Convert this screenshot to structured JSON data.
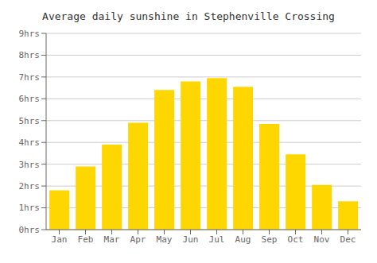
{
  "chart_data": {
    "type": "bar",
    "title": "Average daily sunshine in Stephenville Crossing",
    "categories": [
      "Jan",
      "Feb",
      "Mar",
      "Apr",
      "May",
      "Jun",
      "Jul",
      "Aug",
      "Sep",
      "Oct",
      "Nov",
      "Dec"
    ],
    "values": [
      1.8,
      2.9,
      3.9,
      4.9,
      6.4,
      6.8,
      6.95,
      6.55,
      4.85,
      3.45,
      2.05,
      1.3
    ],
    "color": "#FFD700",
    "ylim": [
      0,
      9
    ],
    "yticks": [
      {
        "value": 0,
        "label": "0hrs"
      },
      {
        "value": 1,
        "label": "1hrs"
      },
      {
        "value": 2,
        "label": "2hrs"
      },
      {
        "value": 3,
        "label": "3hrs"
      },
      {
        "value": 4,
        "label": "4hrs"
      },
      {
        "value": 5,
        "label": "5hrs"
      },
      {
        "value": 6,
        "label": "6hrs"
      },
      {
        "value": 7,
        "label": "7hrs"
      },
      {
        "value": 8,
        "label": "8hrs"
      },
      {
        "value": 9,
        "label": "9hrs"
      }
    ],
    "grid": true
  }
}
